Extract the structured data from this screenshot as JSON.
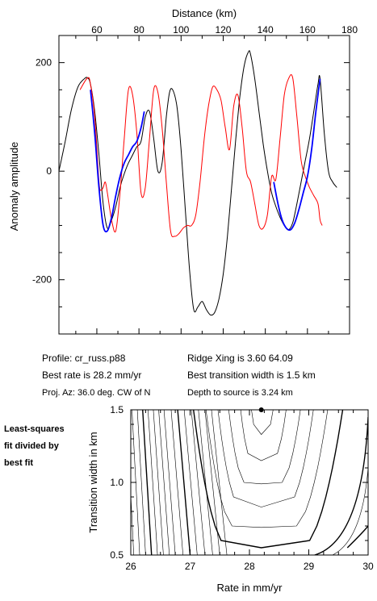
{
  "chart_data": [
    {
      "type": "line",
      "title": "",
      "xlabel": "Distance (km)",
      "ylabel": "Anomaly amplitude",
      "xlim": [
        42,
        180
      ],
      "ylim": [
        -300,
        250
      ],
      "x_ticks": [
        60,
        80,
        100,
        120,
        140,
        160,
        180
      ],
      "y_ticks": [
        200,
        0,
        -200
      ],
      "x_tick_labels": [
        "60",
        "80",
        "100",
        "120",
        "140",
        "160",
        "180"
      ],
      "y_tick_labels": [
        "200",
        "0",
        "-200"
      ],
      "x_axis_position": "top",
      "grid": false,
      "series": [
        {
          "color": "#000000",
          "x": [
            42,
            45,
            48,
            51,
            54,
            55.6,
            57,
            59,
            61,
            63,
            65,
            67,
            69,
            71,
            73,
            75,
            77,
            79,
            81,
            83,
            85,
            87,
            89,
            91,
            93,
            94.5,
            96,
            98,
            100,
            102,
            104,
            106,
            108,
            110,
            112,
            114,
            116,
            118,
            120,
            122,
            124,
            126,
            128,
            130,
            132,
            133,
            135,
            137,
            139,
            141,
            143,
            145,
            147,
            149,
            151,
            153,
            155,
            157,
            159,
            161,
            163,
            165,
            166,
            168,
            170,
            172,
            174
          ],
          "y": [
            0,
            55,
            115,
            155,
            170,
            172,
            160,
            110,
            30,
            -60,
            -105,
            -90,
            -65,
            -30,
            -5,
            15,
            30,
            45,
            55,
            100,
            110,
            60,
            0,
            15,
            100,
            145,
            150,
            120,
            40,
            -70,
            -180,
            -255,
            -250,
            -240,
            -255,
            -265,
            -260,
            -235,
            -190,
            -120,
            -30,
            60,
            140,
            195,
            220,
            215,
            170,
            110,
            50,
            0,
            -40,
            -65,
            -85,
            -100,
            -108,
            -95,
            -60,
            -20,
            20,
            60,
            110,
            160,
            170,
            70,
            0,
            -20,
            -30
          ]
        },
        {
          "color": "#ff0000",
          "x": [
            52,
            55.6,
            57,
            59,
            61,
            62,
            63,
            64,
            65,
            67,
            69,
            71,
            73,
            75,
            77,
            79,
            81,
            83,
            85,
            87,
            89,
            91,
            93,
            95,
            97,
            99,
            101,
            103,
            105,
            107,
            109,
            111,
            113,
            115,
            117,
            119,
            121,
            123,
            125,
            127,
            129,
            131,
            133,
            135,
            137,
            139,
            141,
            143,
            145,
            147,
            149,
            151,
            153,
            155,
            157,
            159,
            161,
            163,
            165,
            166,
            167
          ],
          "y": [
            150,
            172,
            160,
            100,
            -20,
            -35,
            -30,
            -20,
            -40,
            -90,
            -110,
            -40,
            60,
            150,
            140,
            70,
            -40,
            -30,
            60,
            150,
            145,
            80,
            -20,
            -110,
            -120,
            -115,
            -105,
            -100,
            -100,
            -80,
            -20,
            60,
            120,
            155,
            150,
            130,
            80,
            40,
            120,
            140,
            80,
            0,
            -20,
            -60,
            -100,
            -105,
            -80,
            -10,
            -15,
            60,
            140,
            170,
            172,
            100,
            20,
            -10,
            -30,
            -45,
            -60,
            -90,
            -100
          ]
        },
        {
          "color": "#0000ff",
          "x": [
            57,
            59,
            61,
            63,
            65,
            67,
            69,
            71,
            73,
            75,
            77,
            79,
            81,
            82.5,
            144,
            146,
            148,
            150,
            152,
            154,
            156,
            158,
            160,
            162,
            164,
            166
          ],
          "y": [
            150,
            70,
            -30,
            -100,
            -110,
            -85,
            -45,
            -10,
            15,
            30,
            45,
            55,
            80,
            110,
            -20,
            -60,
            -90,
            -105,
            -108,
            -95,
            -70,
            -40,
            -10,
            40,
            110,
            170
          ]
        }
      ]
    },
    {
      "type": "contour",
      "title": "",
      "xlabel": "Rate in mm/yr",
      "ylabel": "Transition width in km",
      "xlim": [
        26,
        30
      ],
      "ylim": [
        0.5,
        1.5
      ],
      "x_ticks": [
        26,
        27,
        28,
        29,
        30
      ],
      "y_ticks": [
        0.5,
        1.0,
        1.5
      ],
      "x_tick_labels": [
        "26",
        "27",
        "28",
        "29",
        "30"
      ],
      "y_tick_labels": [
        "0.5",
        "1.0",
        "1.5"
      ],
      "best_fit_point": {
        "x": 28.2,
        "y": 1.5
      },
      "contour_center_rate": 28.2,
      "grid": false
    }
  ],
  "info": {
    "profile": "Profile: cr_russ.p88",
    "best_rate": "Best rate is 28.2 mm/yr",
    "proj_az": "Proj. Az: 36.0 deg. CW of N",
    "ridge_xing": "Ridge Xing is 3.60 64.09",
    "best_transition": "Best transition width is 1.5 km",
    "depth": "Depth to source is   3.24 km"
  },
  "side_label": {
    "line1": "Least-squares",
    "line2": "fit divided by",
    "line3": "best fit"
  }
}
